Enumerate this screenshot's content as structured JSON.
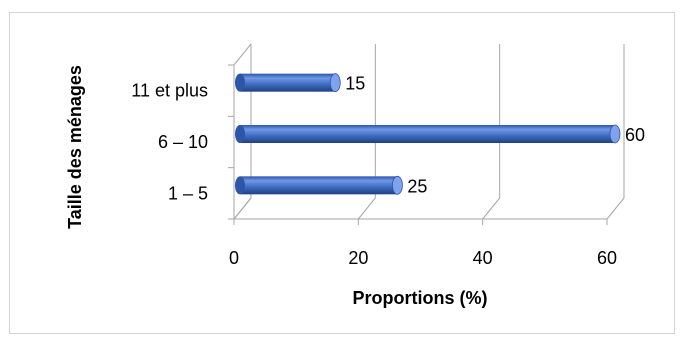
{
  "chart_data": {
    "type": "bar",
    "orientation": "horizontal",
    "style": "3d-cylinder",
    "categories": [
      "1 – 5",
      "6 – 10",
      "11 et plus"
    ],
    "values": [
      25,
      60,
      15
    ],
    "data_labels": [
      "25",
      "60",
      "15"
    ],
    "xlabel": "Proportions (%)",
    "ylabel": "Taille des ménages",
    "xlim": [
      0,
      60
    ],
    "x_ticks": [
      "0",
      "20",
      "40",
      "60"
    ],
    "grid": true,
    "legend": "none",
    "bar_color": "#4472c4"
  }
}
